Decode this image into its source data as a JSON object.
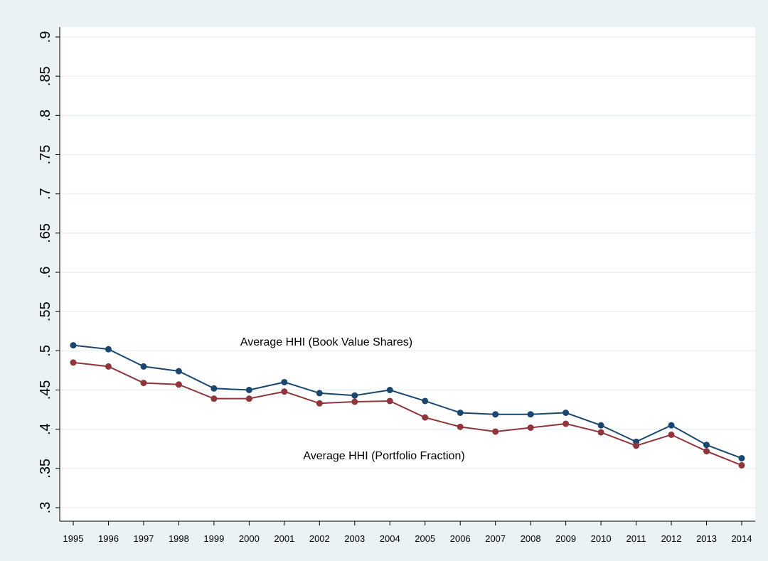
{
  "chart_data": {
    "type": "line",
    "categories": [
      "1995",
      "1996",
      "1997",
      "1998",
      "1999",
      "2000",
      "2001",
      "2002",
      "2003",
      "2004",
      "2005",
      "2006",
      "2007",
      "2008",
      "2009",
      "2010",
      "2011",
      "2012",
      "2013",
      "2014"
    ],
    "series": [
      {
        "name": "Average HHI (Book Value Shares)",
        "color": "#1a476f",
        "values": [
          0.507,
          0.502,
          0.48,
          0.474,
          0.452,
          0.45,
          0.46,
          0.446,
          0.443,
          0.45,
          0.436,
          0.421,
          0.419,
          0.419,
          0.421,
          0.405,
          0.384,
          0.405,
          0.38,
          0.363
        ]
      },
      {
        "name": "Average HHI (Portfolio Fraction)",
        "color": "#90353b",
        "values": [
          0.485,
          0.48,
          0.459,
          0.457,
          0.439,
          0.439,
          0.448,
          0.433,
          0.435,
          0.436,
          0.415,
          0.403,
          0.397,
          0.402,
          0.407,
          0.396,
          0.379,
          0.393,
          0.372,
          0.354
        ]
      }
    ],
    "ylim": [
      0.2855,
      0.9127
    ],
    "yticks": [
      {
        "value": 0.3,
        "label": ".3"
      },
      {
        "value": 0.35,
        "label": ".35"
      },
      {
        "value": 0.4,
        "label": ".4"
      },
      {
        "value": 0.45,
        "label": ".45"
      },
      {
        "value": 0.5,
        "label": ".5"
      },
      {
        "value": 0.55,
        "label": ".55"
      },
      {
        "value": 0.6,
        "label": ".6"
      },
      {
        "value": 0.65,
        "label": ".65"
      },
      {
        "value": 0.7,
        "label": ".7"
      },
      {
        "value": 0.75,
        "label": ".75"
      },
      {
        "value": 0.8,
        "label": ".8"
      },
      {
        "value": 0.85,
        "label": ".85"
      },
      {
        "value": 0.9,
        "label": ".9"
      }
    ],
    "grid": true
  }
}
